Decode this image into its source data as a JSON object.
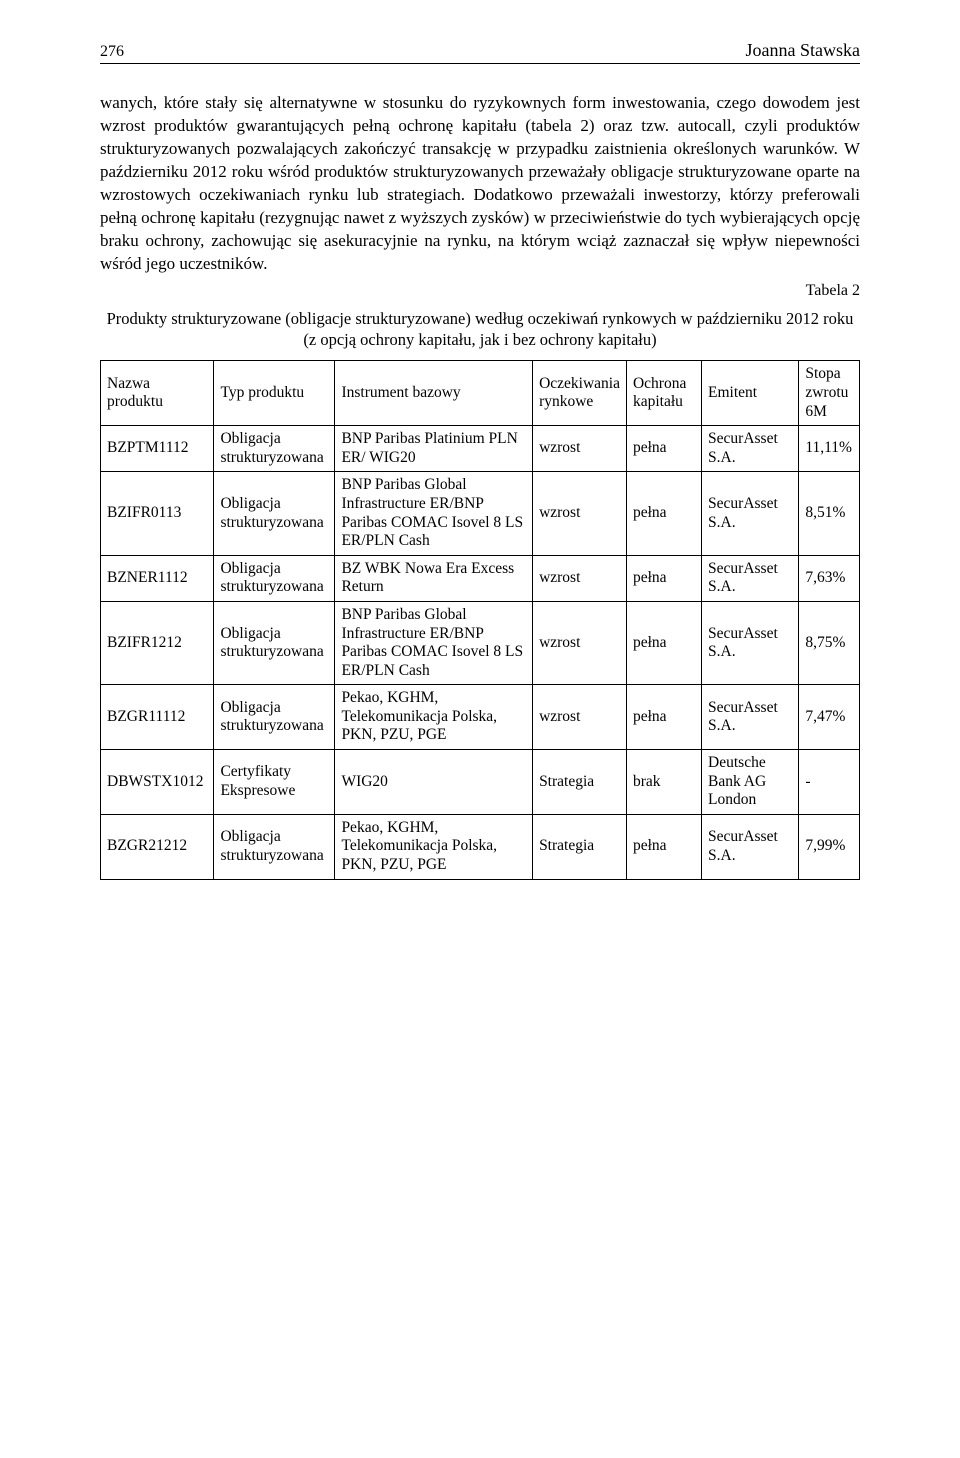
{
  "page_number": "276",
  "author": "Joanna Stawska",
  "body_paragraph": "wanych, które stały się alternatywne w stosunku do ryzykownych form inwestowania, czego dowodem jest wzrost produktów gwarantujących pełną ochronę kapitału (tabela 2) oraz tzw. autocall, czyli produktów strukturyzowanych pozwalających zakończyć transakcję w przypadku zaistnienia określonych warunków. W październiku 2012 roku wśród produktów strukturyzowanych przeważały obligacje strukturyzowane oparte na wzrostowych oczekiwaniach rynku lub strategiach. Dodatkowo przeważali inwestorzy, którzy preferowali pełną ochronę kapitału (rezygnując nawet z wyższych zysków) w przeciwieństwie do tych wybierających opcję braku ochrony, zachowując się asekuracyjnie na rynku, na którym wciąż zaznaczał się wpływ niepewności wśród jego uczestników.",
  "tabela_label": "Tabela 2",
  "table_caption": "Produkty strukturyzowane (obligacje strukturyzowane) według oczekiwań rynkowych w październiku 2012 roku (z opcją ochrony kapitału, jak i bez ochrony kapitału)",
  "columns": {
    "nazwa": "Nazwa produktu",
    "typ": "Typ produktu",
    "instrument": "Instrument bazowy",
    "oczekiwania": "Oczekiwania rynkowe",
    "ochrona": "Ochrona kapitału",
    "emitent": "Emitent",
    "stopa": "Stopa zwrotu 6M"
  },
  "rows": [
    {
      "nazwa": "BZPTM1112",
      "typ": "Obligacja strukturyzowana",
      "instrument": "BNP Paribas Platinium PLN ER/ WIG20",
      "oczekiwania": "wzrost",
      "ochrona": "pełna",
      "emitent": "SecurAsset S.A.",
      "stopa": "11,11%"
    },
    {
      "nazwa": "BZIFR0113",
      "typ": "Obligacja strukturyzowana",
      "instrument": "BNP Paribas Global Infrastructure ER/BNP Paribas COMAC Isovel 8 LS ER/PLN Cash",
      "oczekiwania": "wzrost",
      "ochrona": "pełna",
      "emitent": "SecurAsset S.A.",
      "stopa": "8,51%"
    },
    {
      "nazwa": "BZNER1112",
      "typ": "Obligacja strukturyzowana",
      "instrument": "BZ WBK Nowa Era Excess Return",
      "oczekiwania": "wzrost",
      "ochrona": "pełna",
      "emitent": "SecurAsset S.A.",
      "stopa": "7,63%"
    },
    {
      "nazwa": "BZIFR1212",
      "typ": "Obligacja strukturyzowana",
      "instrument": "BNP Paribas Global Infrastructure ER/BNP Paribas COMAC Isovel 8 LS ER/PLN Cash",
      "oczekiwania": "wzrost",
      "ochrona": "pełna",
      "emitent": "SecurAsset S.A.",
      "stopa": "8,75%"
    },
    {
      "nazwa": "BZGR11112",
      "typ": "Obligacja strukturyzowana",
      "instrument": "Pekao, KGHM, Telekomunikacja Polska, PKN, PZU, PGE",
      "oczekiwania": "wzrost",
      "ochrona": "pełna",
      "emitent": "SecurAsset S.A.",
      "stopa": "7,47%"
    },
    {
      "nazwa": "DBWSTX1012",
      "typ": "Certyfikaty Ekspresowe",
      "instrument": "WIG20",
      "oczekiwania": "Strategia",
      "ochrona": "brak",
      "emitent": "Deutsche Bank AG London",
      "stopa": "-"
    },
    {
      "nazwa": "BZGR21212",
      "typ": "Obligacja strukturyzowana",
      "instrument": "Pekao, KGHM, Telekomunikacja Polska, PKN, PZU, PGE",
      "oczekiwania": "Strategia",
      "ochrona": "pełna",
      "emitent": "SecurAsset S.A.",
      "stopa": "7,99%"
    }
  ],
  "styles": {
    "body_font_size_pt": 12,
    "table_font_size_pt": 11,
    "text_color": "#000000",
    "background_color": "#ffffff",
    "border_color": "#000000",
    "column_widths_pct": [
      15,
      16,
      27,
      11,
      10,
      13,
      8
    ]
  }
}
